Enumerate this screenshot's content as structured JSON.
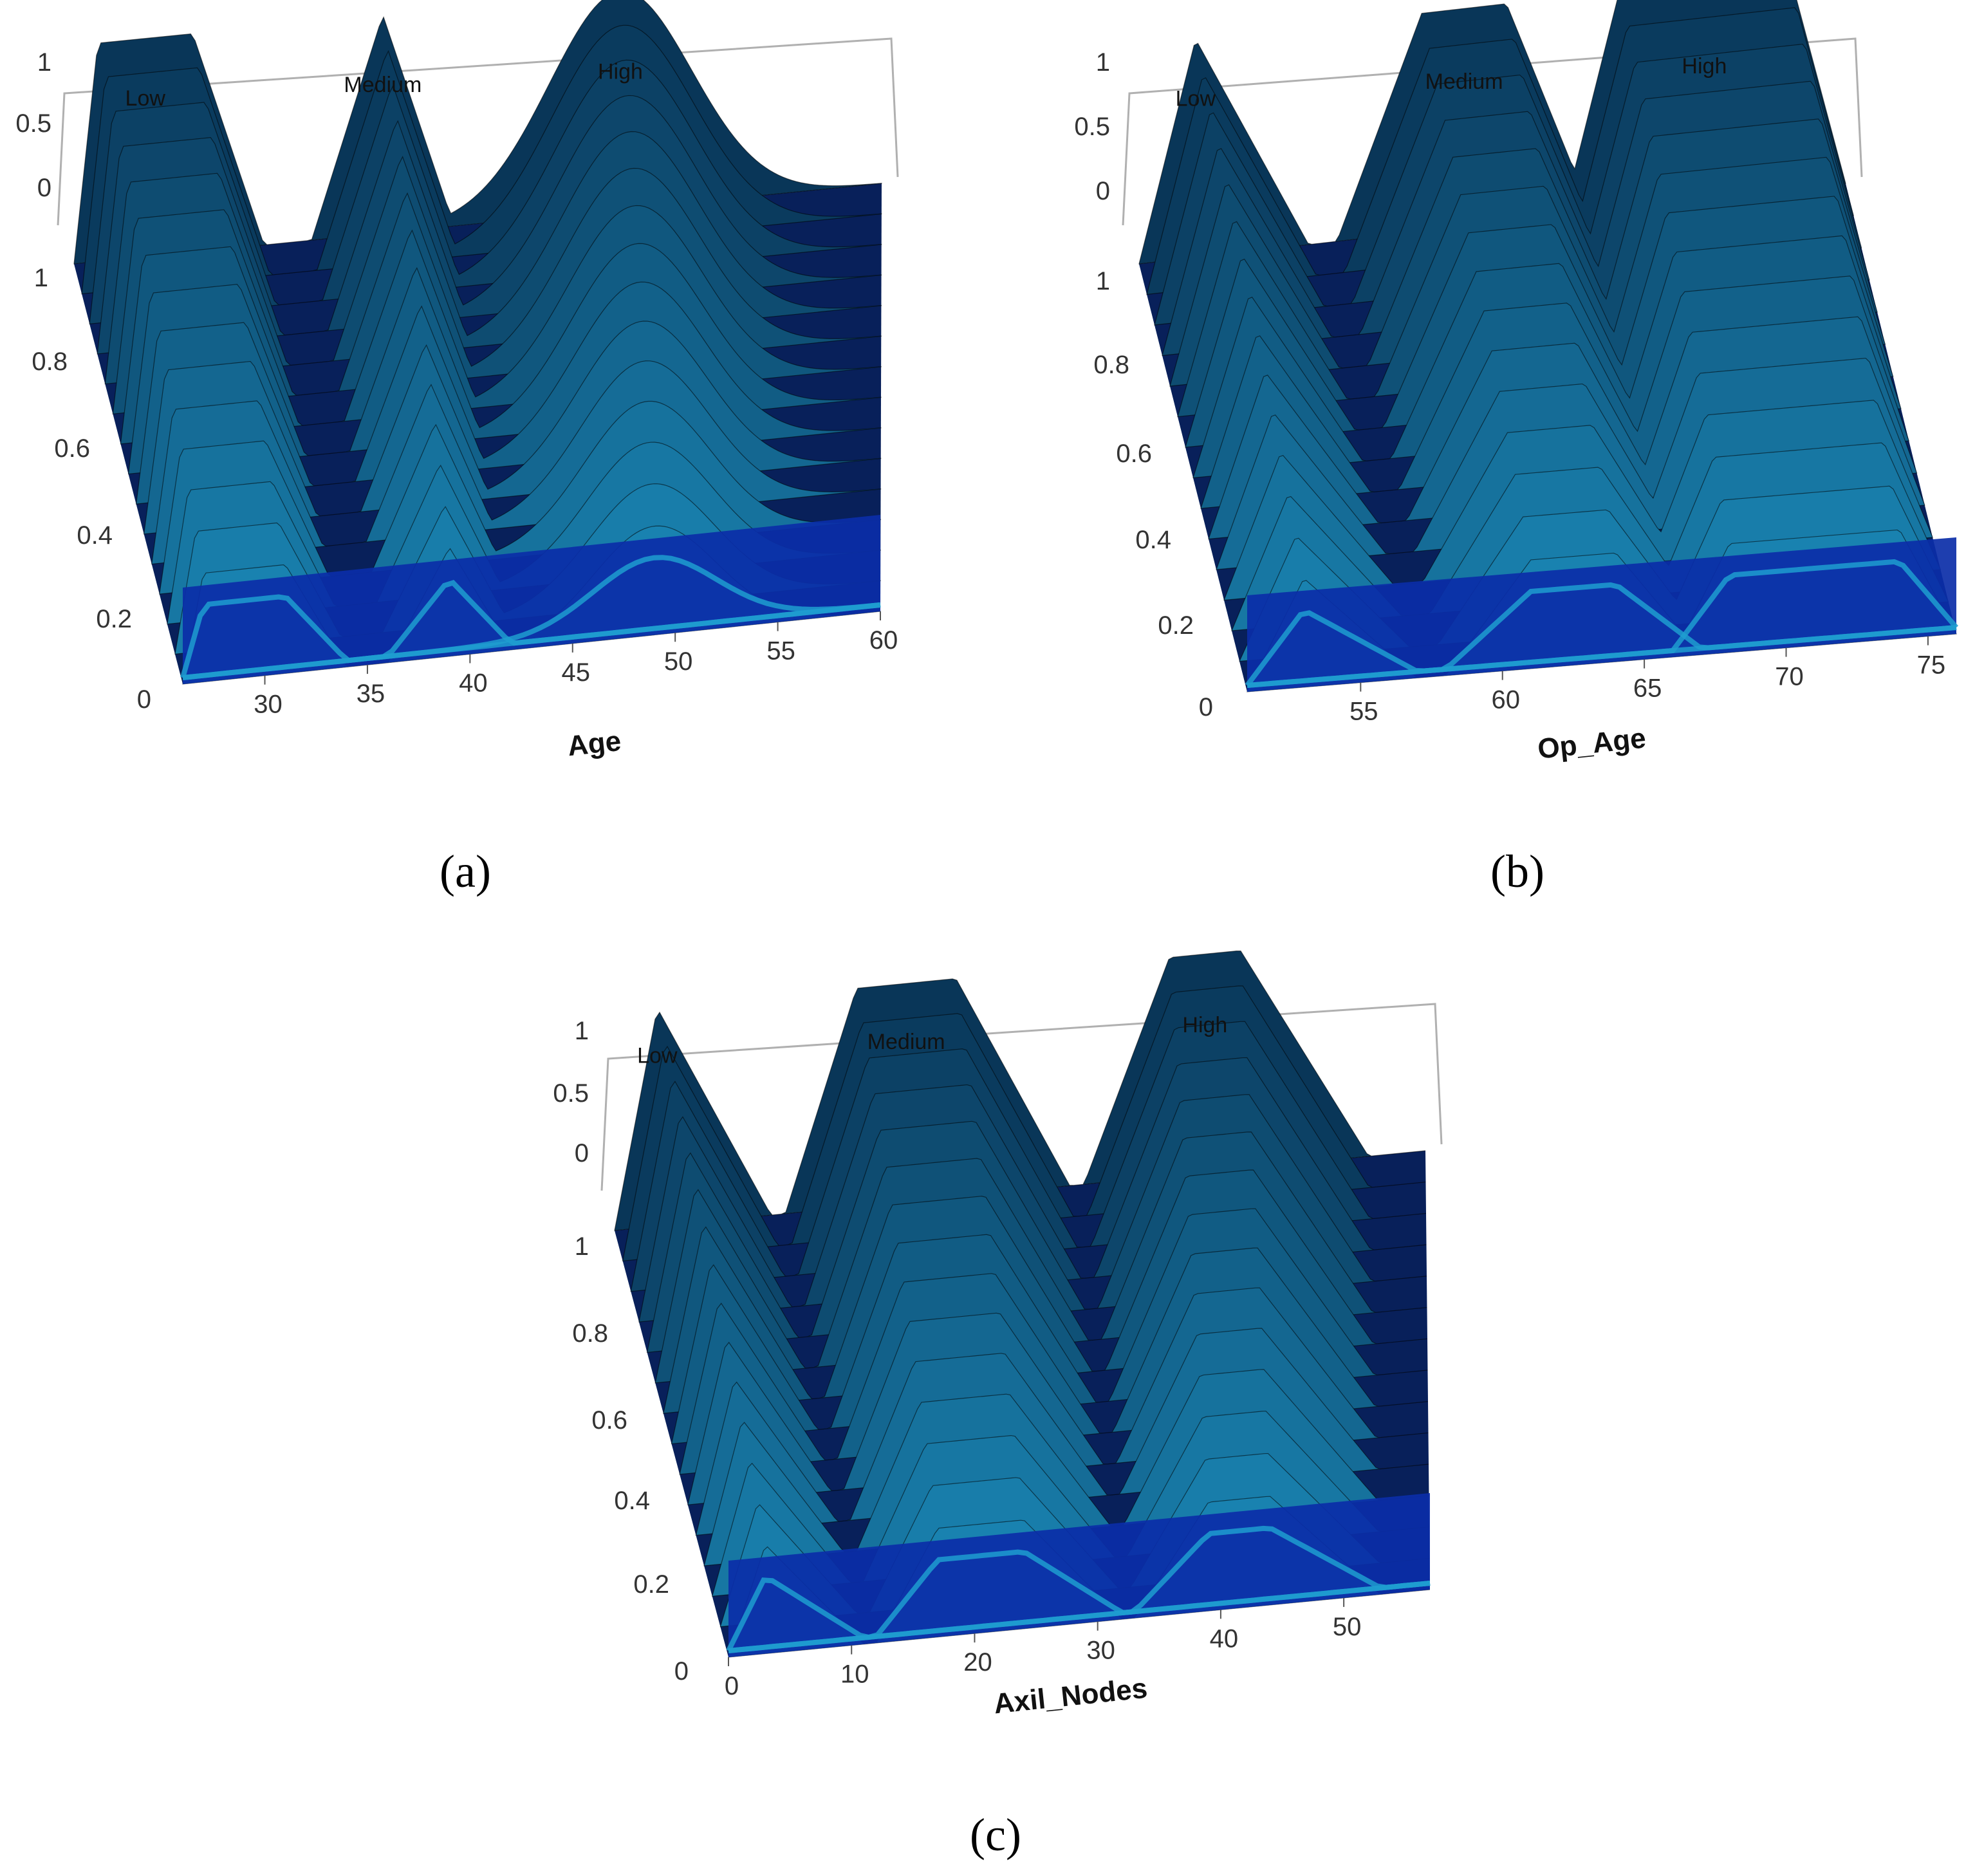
{
  "figure": {
    "panels": [
      {
        "caption": "(a)"
      },
      {
        "caption": "(b)"
      },
      {
        "caption": "(c)"
      }
    ]
  },
  "colors": {
    "background": "#ffffff",
    "floor": "#08205a",
    "front_wall": "#0b2ea8",
    "surface_light": "#1f9ed0",
    "surface_mid": "#0a4f8c",
    "surface_dark": "#021330",
    "edge": "#000000",
    "box_line": "#b0b0b0"
  },
  "chart_data": [
    {
      "type": "surface",
      "panel": "(a)",
      "xlabel": "Age",
      "ylabel": "",
      "xlim": [
        26,
        60
      ],
      "x_ticks": [
        "30",
        "35",
        "40",
        "45",
        "50",
        "55",
        "60"
      ],
      "y_ticks": [
        "0",
        "0.2",
        "0.4",
        "0.6",
        "0.8",
        "1"
      ],
      "z_ticks": [
        "0",
        "0.5",
        "1"
      ],
      "membership_functions": [
        {
          "label": "Low",
          "shape": "trapezoid",
          "params": [
            26,
            27,
            31,
            34
          ]
        },
        {
          "label": "Medium",
          "shape": "triangle",
          "params": [
            36,
            39,
            42
          ]
        },
        {
          "label": "High",
          "shape": "gaussian",
          "params": [
            49,
            3
          ]
        }
      ]
    },
    {
      "type": "surface",
      "panel": "(b)",
      "xlabel": "Op_Age",
      "ylabel": "",
      "xlim": [
        51,
        76
      ],
      "x_ticks": [
        "55",
        "60",
        "65",
        "70",
        "75"
      ],
      "y_ticks": [
        "0",
        "0.2",
        "0.4",
        "0.6",
        "0.8",
        "1"
      ],
      "z_ticks": [
        "0",
        "0.5",
        "1"
      ],
      "membership_functions": [
        {
          "label": "Low",
          "shape": "triangle",
          "params": [
            51,
            53,
            57
          ]
        },
        {
          "label": "Medium",
          "shape": "trapezoid",
          "params": [
            58,
            61,
            64,
            67
          ]
        },
        {
          "label": "High",
          "shape": "trapezoid",
          "params": [
            66,
            68,
            74,
            76
          ]
        }
      ]
    },
    {
      "type": "surface",
      "panel": "(c)",
      "xlabel": "Axil_Nodes",
      "ylabel": "",
      "xlim": [
        0,
        57
      ],
      "x_ticks": [
        "0",
        "10",
        "20",
        "30",
        "40",
        "50"
      ],
      "y_ticks": [
        "0",
        "0.2",
        "0.4",
        "0.6",
        "0.8",
        "1"
      ],
      "z_ticks": [
        "0",
        "0.5",
        "1"
      ],
      "membership_functions": [
        {
          "label": "Low",
          "shape": "triangle",
          "params": [
            0,
            3,
            11
          ]
        },
        {
          "label": "Medium",
          "shape": "trapezoid",
          "params": [
            12,
            17,
            24,
            32
          ]
        },
        {
          "label": "High",
          "shape": "trapezoid",
          "params": [
            33,
            39,
            44,
            53
          ]
        }
      ]
    }
  ]
}
